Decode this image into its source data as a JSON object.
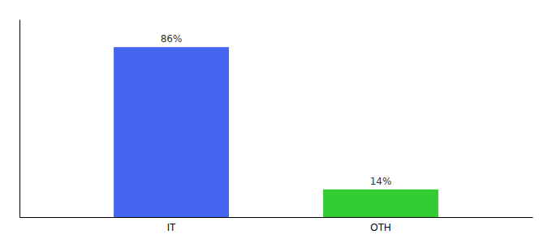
{
  "chart_data": {
    "type": "bar",
    "categories": [
      "IT",
      "OTH"
    ],
    "values": [
      86,
      14
    ],
    "value_labels": [
      "86%",
      "14%"
    ],
    "colors": [
      "#4466ee",
      "#33cc33"
    ],
    "data_labels": true,
    "ylim": [
      0,
      100
    ],
    "yticks": [],
    "tick_labels": "x",
    "grid": false
  }
}
